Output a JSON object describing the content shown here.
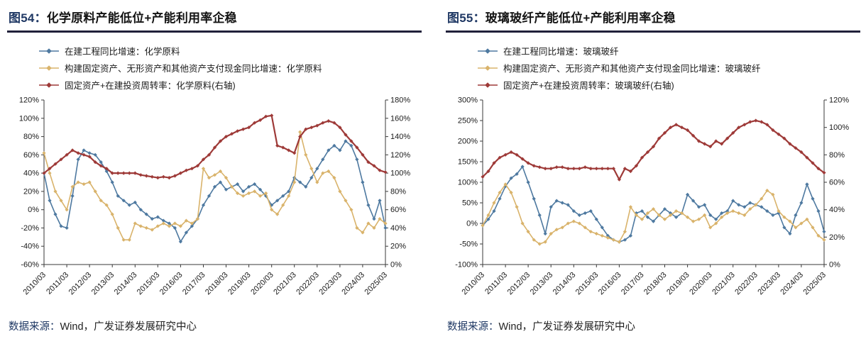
{
  "panels": [
    {
      "title_tag": "图54：",
      "title_text": "化学原料产能低位+产能利用率企稳",
      "source_prefix": "数据来源：",
      "source_text": "Wind，广发证券发展研究中心"
    },
    {
      "title_tag": "图55：",
      "title_text": "玻璃玻纤产能低位+产能利用率企稳",
      "source_prefix": "数据来源：",
      "source_text": "Wind，广发证券发展研究中心"
    }
  ],
  "colors": {
    "title_navy": "#1f3864",
    "rule_dark": "#21213a",
    "axis": "#3a3a3a",
    "text": "#1a1a1a",
    "series_blue": "#4e79a0",
    "series_tan": "#d9b36b",
    "series_red": "#9e3a38"
  },
  "chart_data": [
    {
      "type": "line",
      "title": "图54：化学原料产能低位+产能利用率企稳",
      "grid": false,
      "legend_position": "top-left",
      "x_tick_labels": [
        "2010/03",
        "2011/03",
        "2012/03",
        "2013/03",
        "2014/03",
        "2015/03",
        "2016/03",
        "2017/03",
        "2018/03",
        "2019/03",
        "2020/03",
        "2021/03",
        "2022/03",
        "2023/03",
        "2024/03",
        "2025/03"
      ],
      "x_tick_every": 4,
      "x_frequency": "quarterly",
      "left_axis": {
        "min": -60,
        "max": 120,
        "step": 20,
        "suffix": "%"
      },
      "right_axis": {
        "min": 0,
        "max": 180,
        "step": 20,
        "suffix": "%"
      },
      "series": [
        {
          "name": "在建工程同比增速：化学原料",
          "axis": "left",
          "color": "#4e79a0",
          "marker": "diamond",
          "values": [
            40,
            10,
            -5,
            -18,
            -20,
            15,
            55,
            65,
            62,
            60,
            52,
            42,
            30,
            15,
            10,
            5,
            8,
            0,
            -5,
            -10,
            -8,
            -12,
            -15,
            -20,
            -35,
            -25,
            -18,
            -10,
            5,
            15,
            25,
            30,
            22,
            25,
            28,
            20,
            25,
            28,
            22,
            15,
            5,
            10,
            15,
            20,
            35,
            30,
            25,
            35,
            45,
            55,
            65,
            70,
            65,
            75,
            70,
            55,
            30,
            5,
            -10,
            10,
            -20
          ]
        },
        {
          "name": "构建固定资产、无形资产和其他资产支付现金同比增速：化学原料",
          "axis": "left",
          "color": "#d9b36b",
          "marker": "diamond",
          "values": [
            62,
            40,
            20,
            10,
            0,
            25,
            30,
            28,
            30,
            20,
            10,
            5,
            -5,
            -20,
            -33,
            -33,
            -15,
            -18,
            -20,
            -22,
            -18,
            -15,
            -18,
            -15,
            -18,
            -12,
            -15,
            -10,
            45,
            35,
            38,
            42,
            35,
            25,
            18,
            15,
            18,
            20,
            15,
            18,
            0,
            -5,
            5,
            15,
            30,
            85,
            60,
            45,
            30,
            40,
            42,
            35,
            20,
            10,
            0,
            -20,
            -25,
            -15,
            -20,
            -10,
            -15
          ]
        },
        {
          "name": "固定资产+在建投资周转率：化学原料(右轴)",
          "axis": "right",
          "color": "#9e3a38",
          "marker": "diamond",
          "values": [
            100,
            105,
            110,
            115,
            120,
            125,
            122,
            120,
            118,
            112,
            108,
            105,
            100,
            100,
            100,
            100,
            100,
            98,
            97,
            96,
            95,
            96,
            95,
            97,
            100,
            103,
            105,
            108,
            115,
            120,
            128,
            135,
            140,
            143,
            146,
            148,
            150,
            155,
            158,
            162,
            163,
            130,
            128,
            125,
            122,
            140,
            148,
            150,
            152,
            155,
            157,
            155,
            150,
            142,
            135,
            128,
            120,
            112,
            108,
            103,
            101
          ]
        }
      ]
    },
    {
      "type": "line",
      "title": "图55：玻璃玻纤产能低位+产能利用率企稳",
      "grid": false,
      "legend_position": "top-left",
      "x_tick_labels": [
        "2010/03",
        "2011/03",
        "2012/03",
        "2013/03",
        "2014/03",
        "2015/03",
        "2016/03",
        "2017/03",
        "2018/03",
        "2019/03",
        "2020/03",
        "2021/03",
        "2022/03",
        "2023/03",
        "2024/03",
        "2025/03"
      ],
      "x_tick_every": 4,
      "x_frequency": "quarterly",
      "left_axis": {
        "min": -100,
        "max": 300,
        "step": 50,
        "suffix": "%"
      },
      "right_axis": {
        "min": 0,
        "max": 120,
        "step": 20,
        "suffix": "%"
      },
      "series": [
        {
          "name": "在建工程同比增速：玻璃玻纤",
          "axis": "left",
          "color": "#4e79a0",
          "marker": "diamond",
          "values": [
            -5,
            10,
            30,
            60,
            90,
            110,
            120,
            138,
            100,
            60,
            20,
            -25,
            40,
            55,
            50,
            45,
            30,
            20,
            25,
            30,
            10,
            -10,
            -30,
            -40,
            -45,
            -40,
            -30,
            25,
            30,
            15,
            5,
            20,
            35,
            25,
            15,
            25,
            70,
            55,
            40,
            45,
            20,
            10,
            25,
            30,
            55,
            45,
            40,
            50,
            45,
            40,
            30,
            20,
            25,
            -10,
            -25,
            20,
            50,
            95,
            60,
            30,
            -20
          ]
        },
        {
          "name": "构建固定资产、无形资产和其他资产支付现金同比增速：玻璃玻纤",
          "axis": "left",
          "color": "#d9b36b",
          "marker": "diamond",
          "values": [
            -5,
            20,
            50,
            75,
            95,
            75,
            40,
            0,
            -20,
            -40,
            -50,
            -45,
            -25,
            -15,
            -10,
            0,
            5,
            0,
            -10,
            -20,
            -25,
            -30,
            -35,
            -40,
            -45,
            -20,
            40,
            20,
            10,
            25,
            35,
            20,
            10,
            20,
            30,
            25,
            15,
            5,
            10,
            20,
            -10,
            0,
            15,
            25,
            30,
            25,
            20,
            35,
            45,
            60,
            80,
            70,
            30,
            15,
            5,
            -10,
            0,
            10,
            -10,
            -30,
            -40
          ]
        },
        {
          "name": "固定资产+在建投资周转率：玻璃玻纤(右轴)",
          "axis": "right",
          "color": "#9e3a38",
          "marker": "diamond",
          "values": [
            64,
            68,
            74,
            78,
            80,
            82,
            80,
            77,
            74,
            72,
            71,
            70,
            70,
            71,
            71,
            70,
            70,
            70,
            71,
            70,
            70,
            70,
            70,
            70,
            62,
            70,
            68,
            72,
            78,
            82,
            86,
            92,
            96,
            100,
            102,
            100,
            98,
            94,
            90,
            88,
            86,
            90,
            88,
            92,
            96,
            100,
            102,
            104,
            105,
            104,
            102,
            98,
            95,
            92,
            88,
            85,
            82,
            78,
            74,
            70,
            67
          ]
        }
      ]
    }
  ]
}
